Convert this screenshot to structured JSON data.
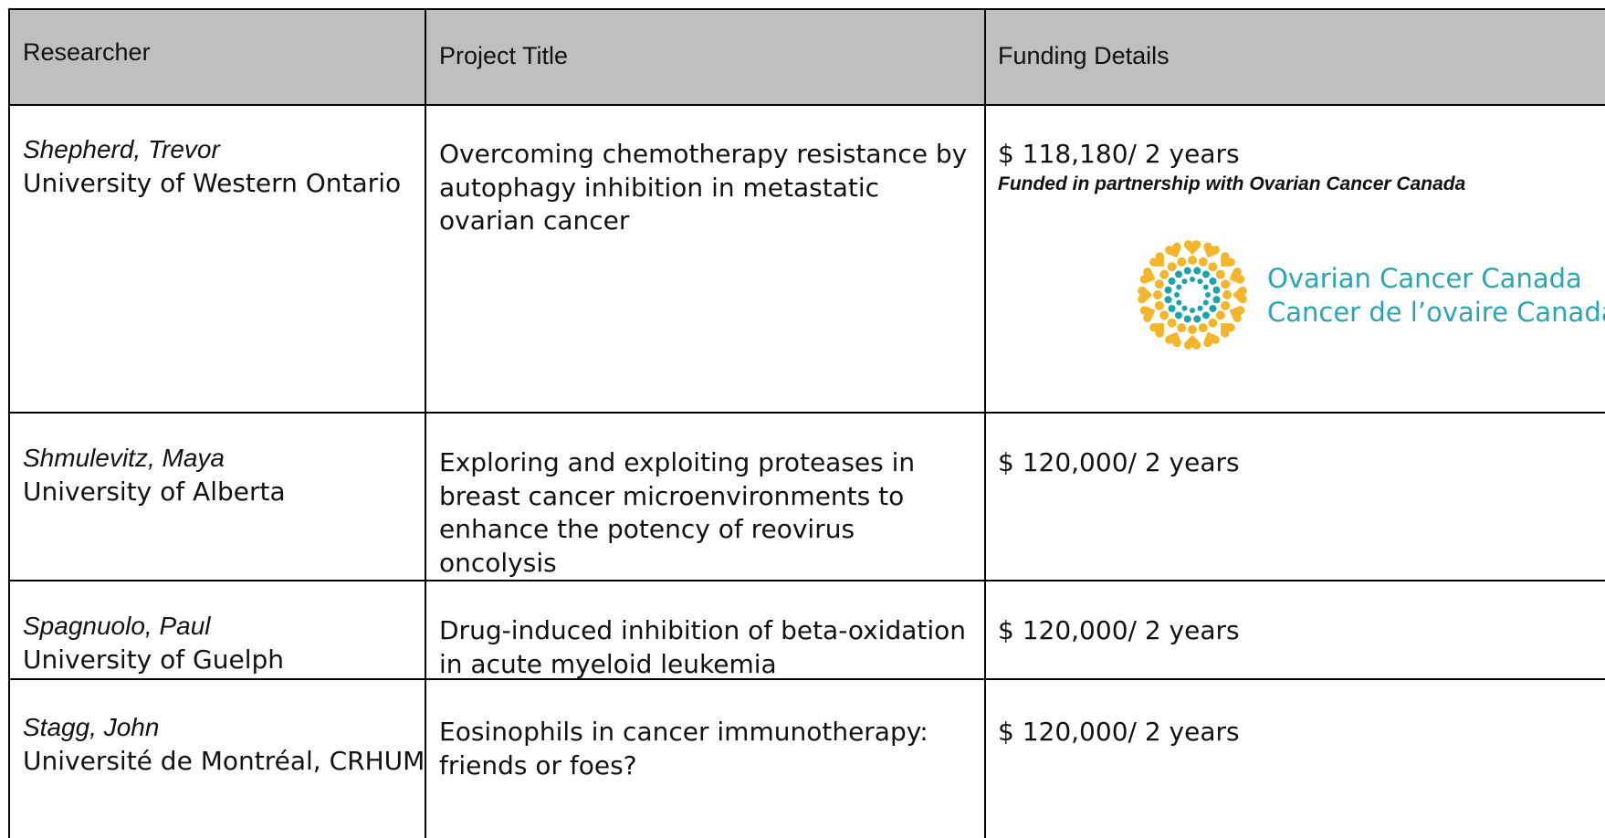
{
  "table": {
    "header": [
      "Researcher",
      "Project Title",
      "Funding Details"
    ],
    "rows": [
      {
        "researcher": "Shepherd, Trevor",
        "institution": "University of Western Ontario",
        "project": "Overcoming chemotherapy resistance by autophagy inhibition in metastatic ovarian cancer",
        "funding": "$ 118,180/ 2 years",
        "note": "Funded in partnership with Ovarian Cancer Canada",
        "logo": [
          "Ovarian Cancer Canada",
          "Cancer de l’ovaire Canada"
        ]
      },
      {
        "researcher": "Shmulevitz, Maya",
        "institution": "University of Alberta",
        "project": "Exploring and exploiting proteases in breast cancer microenvironments to enhance the potency of reovirus oncolysis",
        "funding": "$ 120,000/ 2 years"
      },
      {
        "researcher": "Spagnuolo, Paul",
        "institution": "University of Guelph",
        "project": "Drug-induced inhibition of beta-oxidation in acute myeloid leukemia",
        "funding": "$ 120,000/ 2 years"
      },
      {
        "researcher": "Stagg, John",
        "institution": "Université de Montréal, CRHUM",
        "project": "Eosinophils in cancer immunotherapy: friends or foes?",
        "funding": "$ 120,000/ 2 years"
      }
    ]
  }
}
